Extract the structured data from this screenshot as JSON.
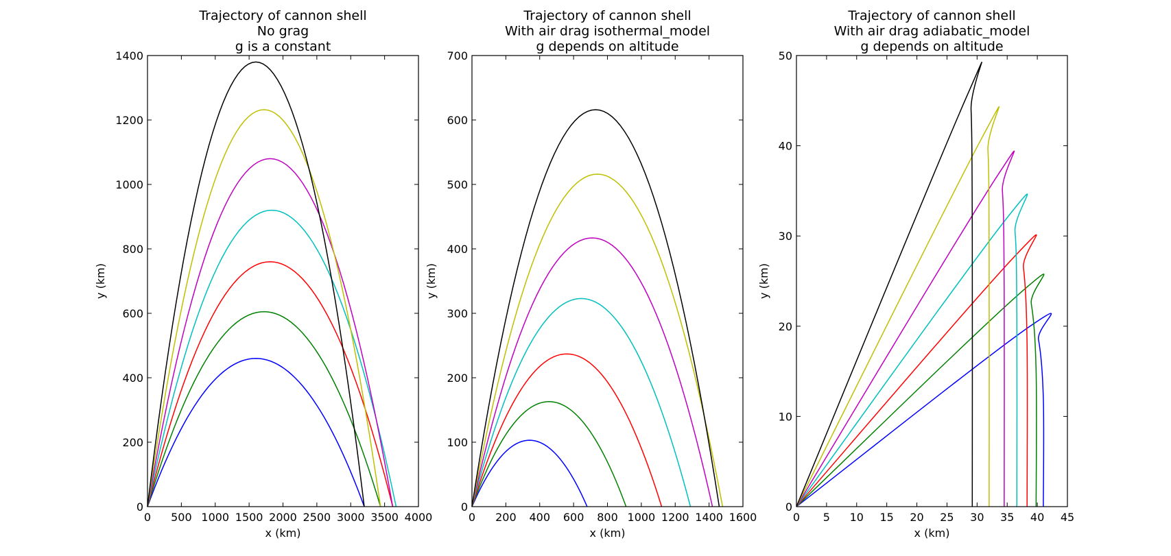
{
  "chart_data": [
    {
      "type": "line",
      "title": [
        "Trajectory of cannon shell",
        "No grag",
        "g is a constant"
      ],
      "xlabel": "x (km)",
      "ylabel": "y (km)",
      "xlim": [
        0,
        4000
      ],
      "ylim": [
        0,
        1400
      ],
      "xticks": [
        0,
        500,
        1000,
        1500,
        2000,
        2500,
        3000,
        3500,
        4000
      ],
      "yticks": [
        0,
        200,
        400,
        600,
        800,
        1000,
        1200,
        1400
      ],
      "grid": false,
      "legend": "none",
      "series": [
        {
          "color": "#0000ff",
          "x": [
            0,
            1600,
            3200
          ],
          "y": [
            0,
            460,
            0
          ]
        },
        {
          "color": "#008000",
          "x": [
            0,
            1720,
            3440
          ],
          "y": [
            0,
            605,
            0
          ]
        },
        {
          "color": "#ff0000",
          "x": [
            0,
            1810,
            3620
          ],
          "y": [
            0,
            760,
            0
          ]
        },
        {
          "color": "#00bfbf",
          "x": [
            0,
            1835,
            3670
          ],
          "y": [
            0,
            920,
            0
          ]
        },
        {
          "color": "#bf00bf",
          "x": [
            0,
            1810,
            3620
          ],
          "y": [
            0,
            1080,
            0
          ]
        },
        {
          "color": "#bfbf00",
          "x": [
            0,
            1720,
            3440
          ],
          "y": [
            0,
            1232,
            0
          ]
        },
        {
          "color": "#000000",
          "x": [
            0,
            1600,
            3200
          ],
          "y": [
            0,
            1380,
            0
          ]
        }
      ]
    },
    {
      "type": "line",
      "title": [
        "Trajectory of cannon shell",
        "With air drag  isothermal_model",
        "g depends on altitude"
      ],
      "xlabel": "x (km)",
      "ylabel": "y (km)",
      "xlim": [
        0,
        1600
      ],
      "ylim": [
        0,
        700
      ],
      "xticks": [
        0,
        200,
        400,
        600,
        800,
        1000,
        1200,
        1400,
        1600
      ],
      "yticks": [
        0,
        100,
        200,
        300,
        400,
        500,
        600,
        700
      ],
      "grid": false,
      "legend": "none",
      "series": [
        {
          "color": "#0000ff",
          "x": [
            0,
            340,
            680
          ],
          "y": [
            0,
            103,
            0
          ]
        },
        {
          "color": "#008000",
          "x": [
            0,
            455,
            910
          ],
          "y": [
            0,
            163,
            0
          ]
        },
        {
          "color": "#ff0000",
          "x": [
            0,
            560,
            1120
          ],
          "y": [
            0,
            237,
            0
          ]
        },
        {
          "color": "#00bfbf",
          "x": [
            0,
            645,
            1290
          ],
          "y": [
            0,
            323,
            0
          ]
        },
        {
          "color": "#bf00bf",
          "x": [
            0,
            710,
            1420
          ],
          "y": [
            0,
            417,
            0
          ]
        },
        {
          "color": "#bfbf00",
          "x": [
            0,
            740,
            1480
          ],
          "y": [
            0,
            516,
            0
          ]
        },
        {
          "color": "#000000",
          "x": [
            0,
            730,
            1460
          ],
          "y": [
            0,
            616,
            0
          ]
        }
      ]
    },
    {
      "type": "line",
      "title": [
        "Trajectory of cannon shell",
        "With air drag  adiabatic_model",
        "g depends on altitude"
      ],
      "xlabel": "x (km)",
      "ylabel": "y (km)",
      "xlim": [
        0,
        45
      ],
      "ylim": [
        0,
        50
      ],
      "xticks": [
        0,
        5,
        10,
        15,
        20,
        25,
        30,
        35,
        40,
        45
      ],
      "yticks": [
        0,
        10,
        20,
        30,
        40,
        50
      ],
      "grid": false,
      "legend": "none",
      "series": [
        {
          "color": "#0000ff",
          "x": [
            0,
            38.8,
            40.2,
            41.0,
            41.0
          ],
          "y": [
            0,
            20.0,
            18.5,
            12,
            0
          ]
        },
        {
          "color": "#008000",
          "x": [
            0,
            37.7,
            39.0,
            39.8,
            39.8
          ],
          "y": [
            0,
            24.0,
            22.5,
            15,
            0
          ]
        },
        {
          "color": "#ff0000",
          "x": [
            0,
            36.6,
            37.7,
            38.3,
            38.3
          ],
          "y": [
            0,
            28.0,
            26.5,
            18,
            0
          ]
        },
        {
          "color": "#00bfbf",
          "x": [
            0,
            35.2,
            36.3,
            36.6,
            36.6
          ],
          "y": [
            0,
            32.2,
            30.5,
            21,
            0
          ]
        },
        {
          "color": "#bf00bf",
          "x": [
            0,
            33.2,
            34.2,
            34.5,
            34.5
          ],
          "y": [
            0,
            36.5,
            35.0,
            24,
            0
          ]
        },
        {
          "color": "#bfbf00",
          "x": [
            0,
            30.9,
            31.8,
            32.0,
            32.0
          ],
          "y": [
            0,
            41.0,
            39.5,
            27,
            0
          ]
        },
        {
          "color": "#000000",
          "x": [
            0,
            28.3,
            29.0,
            29.2,
            29.2
          ],
          "y": [
            0,
            45.5,
            44.0,
            30,
            0
          ]
        }
      ]
    }
  ]
}
